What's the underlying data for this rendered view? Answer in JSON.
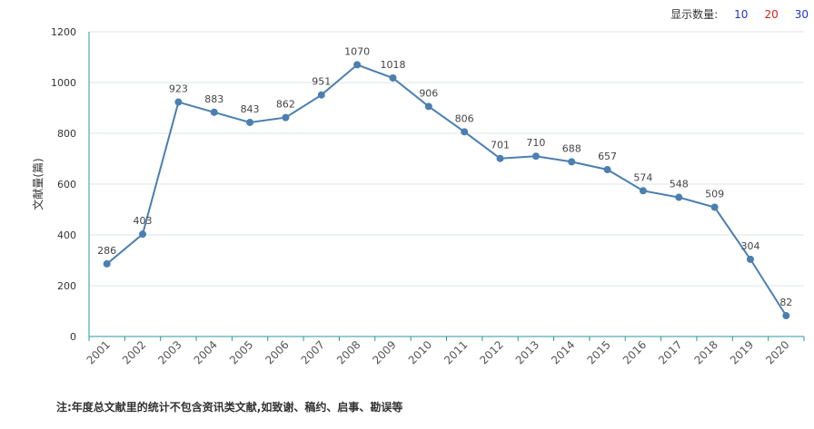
{
  "display_count": {
    "label": "显示数量:",
    "options": [
      {
        "label": "10",
        "color": "#2233cc"
      },
      {
        "label": "20",
        "color": "#cc2222"
      },
      {
        "label": "30",
        "color": "#2233cc"
      }
    ]
  },
  "footnote": "注:年度总文献里的统计不包含资讯类文献,如致谢、稿约、启事、勘误等",
  "colors": {
    "line": "#4a7fb0",
    "axis": "#2a9a9a",
    "grid": "#dde4ea"
  },
  "chart_data": {
    "type": "line",
    "ylabel": "文献量(篇)",
    "ylim": [
      0,
      1200
    ],
    "yticks": [
      0,
      200,
      400,
      600,
      800,
      1000,
      1200
    ],
    "x": [
      "2001",
      "2002",
      "2003",
      "2004",
      "2005",
      "2006",
      "2007",
      "2008",
      "2009",
      "2010",
      "2011",
      "2012",
      "2013",
      "2014",
      "2015",
      "2016",
      "2017",
      "2018",
      "2019",
      "2020"
    ],
    "values": [
      286,
      403,
      923,
      883,
      843,
      862,
      951,
      1070,
      1018,
      906,
      806,
      701,
      710,
      688,
      657,
      574,
      548,
      509,
      304,
      82
    ],
    "grid": true,
    "legend": "none"
  }
}
